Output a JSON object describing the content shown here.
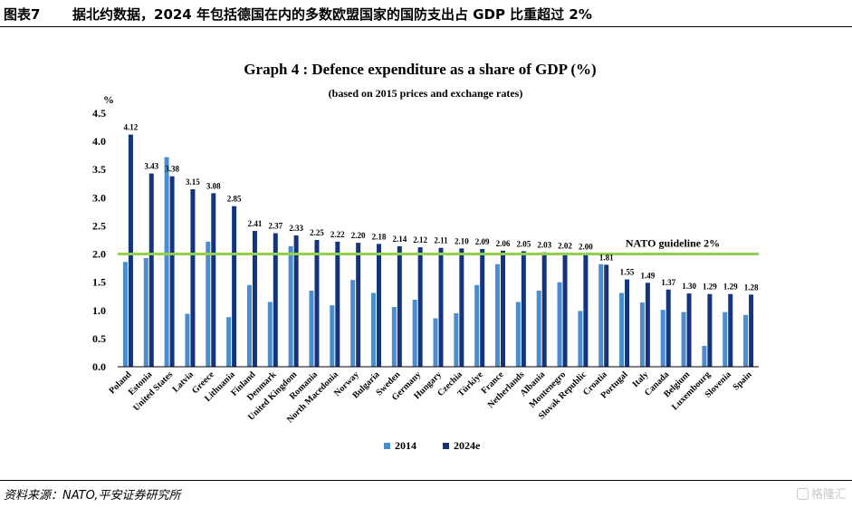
{
  "header": {
    "figure_no": "图表7",
    "title": "据北约数据，2024 年包括德国在内的多数欧盟国家的国防支出占 GDP 比重超过 2%"
  },
  "footer": {
    "source": "资料来源：NATO,平安证券研究所",
    "watermark": "格隆汇"
  },
  "colors": {
    "series_2014": "#4a8ed0",
    "series_2024e": "#14357d",
    "guideline": "#92d050"
  },
  "chart_data": {
    "type": "bar",
    "title": "Graph 4 : Defence expenditure as a share of GDP (%)",
    "subtitle": "(based on 2015 prices and exchange rates)",
    "ylabel": "%",
    "ylim": [
      0,
      4.5
    ],
    "yticks": [
      "0.0",
      "0.5",
      "1.0",
      "1.5",
      "2.0",
      "2.5",
      "3.0",
      "3.5",
      "4.0",
      "4.5"
    ],
    "grid": false,
    "legend_position": "bottom-center",
    "categories": [
      "Poland",
      "Estonia",
      "United States",
      "Latvia",
      "Greece",
      "Lithuania",
      "Finland",
      "Denmark",
      "United Kingdom",
      "Romania",
      "North Macedonia",
      "Norway",
      "Bulgaria",
      "Sweden",
      "Germany",
      "Hungary",
      "Czechia",
      "Türkiye",
      "France",
      "Netherlands",
      "Albania",
      "Montenegro",
      "Slovak Republic",
      "Croatia",
      "Portugal",
      "Italy",
      "Canada",
      "Belgium",
      "Luxembourg",
      "Slovenia",
      "Spain"
    ],
    "series": [
      {
        "name": "2014",
        "values": [
          1.86,
          1.93,
          3.72,
          0.94,
          2.22,
          0.88,
          1.45,
          1.15,
          2.14,
          1.35,
          1.09,
          1.54,
          1.31,
          1.06,
          1.19,
          0.86,
          0.95,
          1.45,
          1.82,
          1.15,
          1.35,
          1.5,
          0.99,
          1.82,
          1.31,
          1.14,
          1.01,
          0.97,
          0.37,
          0.97,
          0.92
        ]
      },
      {
        "name": "2024e",
        "values": [
          4.12,
          3.43,
          3.38,
          3.15,
          3.08,
          2.85,
          2.41,
          2.37,
          2.33,
          2.25,
          2.22,
          2.2,
          2.18,
          2.14,
          2.12,
          2.11,
          2.1,
          2.09,
          2.06,
          2.05,
          2.03,
          2.02,
          2.0,
          1.81,
          1.55,
          1.49,
          1.37,
          1.3,
          1.29,
          1.29,
          1.28
        ]
      }
    ],
    "data_labels_2024e": [
      "4.12",
      "3.43",
      "3.38",
      "3.15",
      "3.08",
      "2.85",
      "2.41",
      "2.37",
      "2.33",
      "2.25",
      "2.22",
      "2.20",
      "2.18",
      "2.14",
      "2.12",
      "2.11",
      "2.10",
      "2.09",
      "2.06",
      "2.05",
      "2.03",
      "2.02",
      "2.00",
      "1.81",
      "1.55",
      "1.49",
      "1.37",
      "1.30",
      "1.29",
      "1.29",
      "1.28"
    ],
    "reference_line": {
      "value": 2.0,
      "label": "NATO guideline 2%"
    }
  }
}
